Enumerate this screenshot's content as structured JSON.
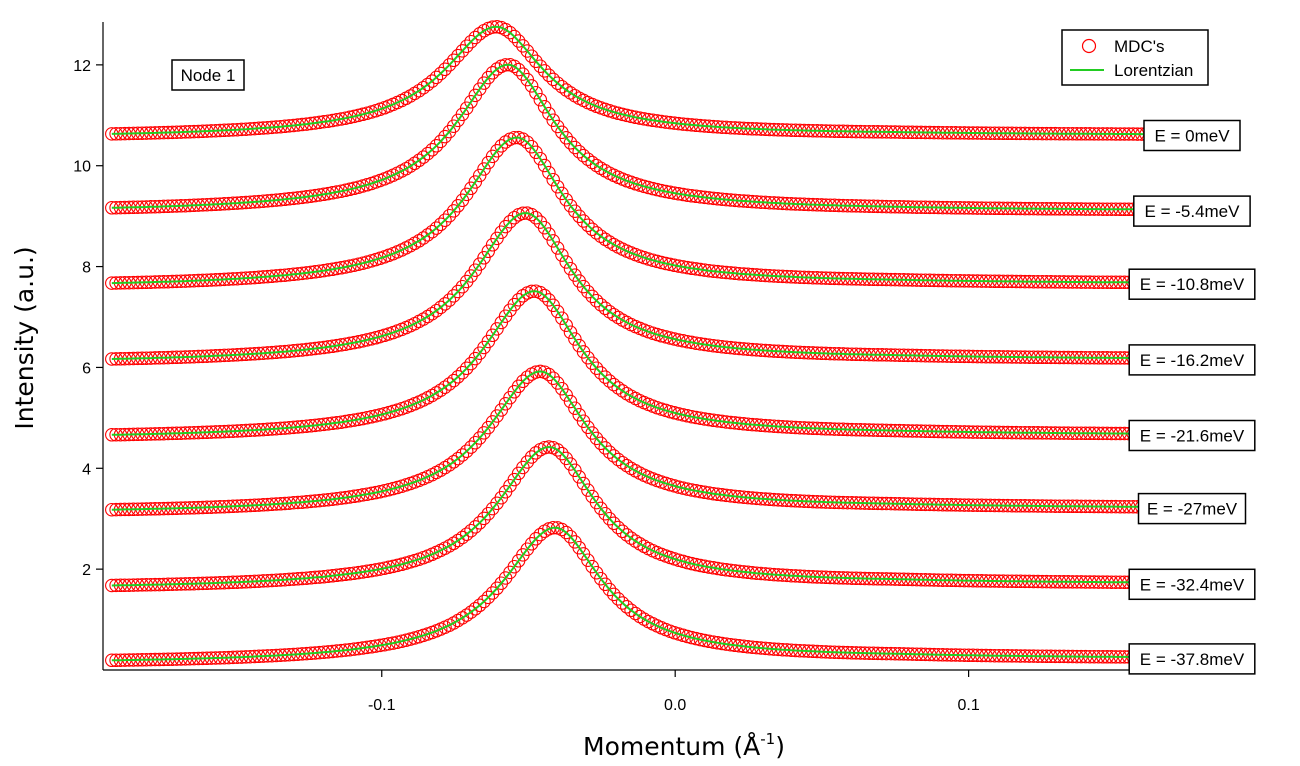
{
  "chart_data": {
    "type": "scatter",
    "title": "",
    "xlabel": "Momentum (Å",
    "xlabel_superscript": "-1",
    "xlabel_suffix": ")",
    "ylabel": "Intensity (a.u.)",
    "xlim": [
      -0.195,
      0.155
    ],
    "ylim": [
      0,
      12.85
    ],
    "xticks": [
      {
        "value": -0.1,
        "label": "-0.1"
      },
      {
        "value": 0.0,
        "label": "0.0"
      },
      {
        "value": 0.1,
        "label": "0.1"
      }
    ],
    "yticks": [
      {
        "value": 2,
        "label": "2"
      },
      {
        "value": 4,
        "label": "4"
      },
      {
        "value": 6,
        "label": "6"
      },
      {
        "value": 8,
        "label": "8"
      },
      {
        "value": 10,
        "label": "10"
      },
      {
        "value": 12,
        "label": "12"
      }
    ],
    "grid": false,
    "legend": {
      "position": "top-right",
      "entries": [
        {
          "label": "MDC's",
          "marker": "open-circle",
          "color": "#ff0000"
        },
        {
          "label": "Lorentzian",
          "marker": "line",
          "color": "#22cc22"
        }
      ]
    },
    "annotation": "Node 1",
    "x_range": [
      -0.192,
      0.19
    ],
    "series": [
      {
        "label": "E = 0meV",
        "baseline": 10.55,
        "peak_x": -0.061,
        "peak_y": 12.75,
        "right_level": 10.6
      },
      {
        "label": "E = -5.4meV",
        "baseline": 9.07,
        "peak_x": -0.057,
        "peak_y": 12.0,
        "right_level": 9.1
      },
      {
        "label": "E = -10.8meV",
        "baseline": 7.58,
        "peak_x": -0.054,
        "peak_y": 10.55,
        "right_level": 7.65
      },
      {
        "label": "E = -16.2meV",
        "baseline": 6.08,
        "peak_x": -0.051,
        "peak_y": 9.05,
        "right_level": 6.15
      },
      {
        "label": "E = -21.6meV",
        "baseline": 4.58,
        "peak_x": -0.048,
        "peak_y": 7.5,
        "right_level": 4.65
      },
      {
        "label": "E = -27meV",
        "baseline": 3.1,
        "peak_x": -0.046,
        "peak_y": 5.9,
        "right_level": 3.2
      },
      {
        "label": "E = -32.4meV",
        "baseline": 1.6,
        "peak_x": -0.043,
        "peak_y": 4.4,
        "right_level": 1.7
      },
      {
        "label": "E = -37.8meV",
        "baseline": 0.12,
        "peak_x": -0.041,
        "peak_y": 2.8,
        "right_level": 0.22
      }
    ],
    "marker_color": "#ff0000",
    "fit_color": "#22cc22"
  }
}
